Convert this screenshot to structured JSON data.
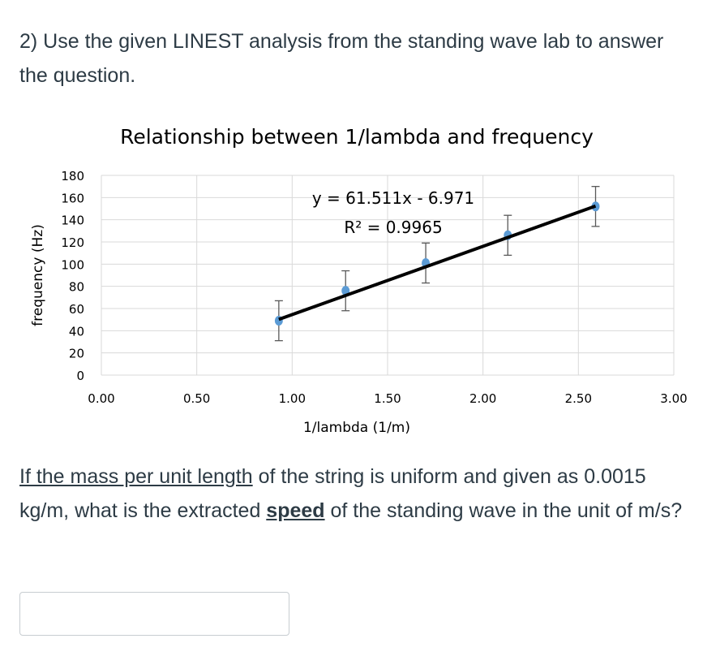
{
  "question_intro": "2) Use the given LINEST analysis from the standing wave lab to answer the question.",
  "question_body": {
    "part1_underlined": "If the mass per unit length",
    "part2": " of the string is uniform and given as 0.0015 kg/m, what is the extracted ",
    "part3_bold_underlined": "speed",
    "part4": " of the standing wave in the unit of m/s?"
  },
  "answer_input": {
    "value": ""
  },
  "chart_data": {
    "type": "scatter",
    "title": "Relationship between 1/lambda and frequency",
    "xlabel": "1/lambda (1/m)",
    "ylabel": "frequency (Hz)",
    "xlim": [
      0,
      3
    ],
    "ylim": [
      0,
      180
    ],
    "xticks": [
      "0.00",
      "0.50",
      "1.00",
      "1.50",
      "2.00",
      "2.50",
      "3.00"
    ],
    "yticks": [
      "0",
      "20",
      "40",
      "60",
      "80",
      "100",
      "120",
      "140",
      "160",
      "180"
    ],
    "grid": true,
    "points": [
      {
        "x": 0.93,
        "y": 49,
        "err": 18
      },
      {
        "x": 1.28,
        "y": 76,
        "err": 18
      },
      {
        "x": 1.7,
        "y": 101,
        "err": 18
      },
      {
        "x": 2.13,
        "y": 126,
        "err": 18
      },
      {
        "x": 2.59,
        "y": 152,
        "err": 18
      }
    ],
    "trendline": {
      "slope": 61.511,
      "intercept": -6.971,
      "equation": "y = 61.511x - 6.971",
      "r2": "R² = 0.9965"
    },
    "colors": {
      "point": "#5b9bd5",
      "trendline": "#000000",
      "grid": "#d9d9d9",
      "errorbar": "#595959"
    }
  }
}
